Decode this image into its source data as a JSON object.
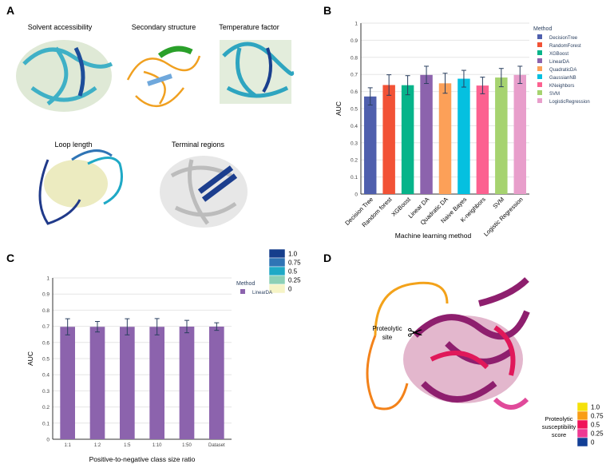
{
  "panels": {
    "a": {
      "letter": "A",
      "titles": [
        "Solvent accessibility",
        "Secondary structure",
        "Temperature factor",
        "Loop length",
        "Terminal regions"
      ],
      "colorbar": {
        "labels": [
          "1.0",
          "0.75",
          "0.5",
          "0.25",
          "0"
        ],
        "colors": [
          "#163e8c",
          "#2f74b5",
          "#1fa9c6",
          "#8dd0b6",
          "#f6f4c6"
        ]
      }
    },
    "b": {
      "letter": "B"
    },
    "c": {
      "letter": "C"
    },
    "d": {
      "letter": "D",
      "annotation": [
        "Proteolytic",
        "site"
      ],
      "scissors": "✂",
      "colorbar": {
        "title": [
          "Proteolytic",
          "susceptibility",
          "score"
        ],
        "labels": [
          "1.0",
          "0.75",
          "0.5",
          "0.25",
          "0"
        ],
        "colors": [
          "#f5e10a",
          "#f99d16",
          "#f01358",
          "#ee3a93",
          "#123f96"
        ]
      }
    }
  },
  "chart_data": [
    {
      "panel": "B",
      "type": "bar",
      "xlabel": "Machine learning method",
      "ylabel": "AUC",
      "ylim": [
        0,
        1
      ],
      "yticks": [
        "0",
        "0.1",
        "0.2",
        "0.3",
        "0.4",
        "0.5",
        "0.6",
        "0.7",
        "0.8",
        "0.9",
        "1"
      ],
      "grid": true,
      "legend_title": "Method",
      "legend_position": "right",
      "categories": [
        "Decision Tree",
        "Random forest",
        "XGBoost",
        "Linear DA",
        "Quadratic DA",
        "Naive Bayes",
        "K-neighbors",
        "SVM",
        "Logistic Regression"
      ],
      "legend": [
        "DecisionTree",
        "RandomForest",
        "XGBoost",
        "LinearDA",
        "QuadraticDA",
        "GaussianNB",
        "KNeighbors",
        "SVM",
        "LogisticRegression"
      ],
      "colors": [
        "#4f5fad",
        "#f25236",
        "#06b48a",
        "#8c63ad",
        "#fca058",
        "#05c0e0",
        "#fc6190",
        "#a6d36f",
        "#e89ecb"
      ],
      "values": [
        0.571,
        0.638,
        0.637,
        0.697,
        0.648,
        0.675,
        0.635,
        0.682,
        0.697
      ],
      "error_low": [
        0.521,
        0.578,
        0.581,
        0.647,
        0.59,
        0.626,
        0.587,
        0.628,
        0.647
      ],
      "error_high": [
        0.622,
        0.698,
        0.693,
        0.748,
        0.707,
        0.724,
        0.684,
        0.735,
        0.748
      ]
    },
    {
      "panel": "C",
      "type": "bar",
      "xlabel": "Positive-to-negative class size ratio",
      "ylabel": "AUC",
      "ylim": [
        0,
        1
      ],
      "yticks": [
        "0",
        "0.1",
        "0.2",
        "0.3",
        "0.4",
        "0.5",
        "0.6",
        "0.7",
        "0.8",
        "0.9",
        "1"
      ],
      "grid": true,
      "legend_title": "Method",
      "legend_position": "right",
      "categories": [
        "1:1",
        "1:2",
        "1:5",
        "1:10",
        "1:50",
        "Dataset"
      ],
      "legend": [
        "LinearDA"
      ],
      "colors": [
        "#8c63ad"
      ],
      "values": [
        0.697,
        0.697,
        0.697,
        0.697,
        0.698,
        0.698
      ],
      "error_low": [
        0.647,
        0.665,
        0.647,
        0.647,
        0.66,
        0.675
      ],
      "error_high": [
        0.747,
        0.73,
        0.747,
        0.748,
        0.737,
        0.722
      ]
    }
  ]
}
